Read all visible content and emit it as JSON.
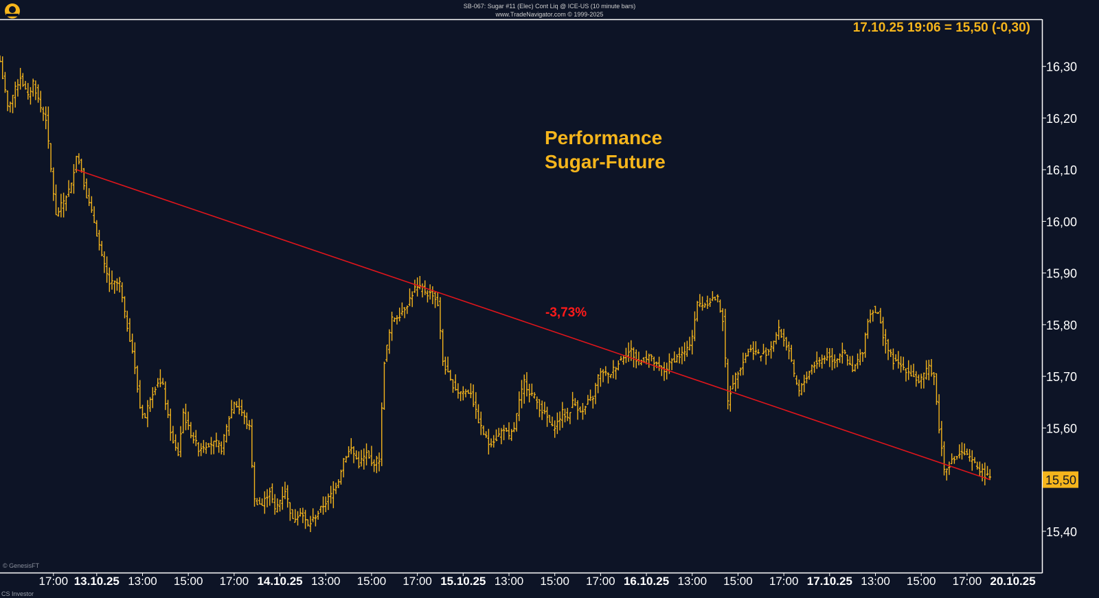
{
  "header": {
    "line1": "SB-067:  Sugar #11 (Elec) Cont Liq @ ICE-US  (10 minute bars)",
    "line2": "www.TradeNavigator.com © 1999-2025",
    "logo_icon": "genesis-logo-icon"
  },
  "readout": "17.10.25 19:06 = 15,50 (-0,30)",
  "watermark": "© GenesisFT",
  "footer_text": "CS Investor",
  "colors": {
    "background": "#0d1426",
    "bars": "#f5b51c",
    "trendline": "#e0151b",
    "title": "#f5b51c",
    "percent": "#ff1a1a",
    "axis_text": "#ffffff",
    "price_tag_bg": "#f5b51c"
  },
  "chart_data": {
    "type": "ohlc-bar",
    "title": "Performance Sugar-Future",
    "title_lines": [
      "Performance",
      "Sugar-Future"
    ],
    "annotation": "-3,73%",
    "current_price_label": "15,50",
    "ylim": [
      15.32,
      16.39
    ],
    "y_ticks": [
      {
        "value": 16.3,
        "label": "16,30"
      },
      {
        "value": 16.2,
        "label": "16,20"
      },
      {
        "value": 16.1,
        "label": "16,10"
      },
      {
        "value": 16.0,
        "label": "16,00"
      },
      {
        "value": 15.9,
        "label": "15,90"
      },
      {
        "value": 15.8,
        "label": "15,80"
      },
      {
        "value": 15.7,
        "label": "15,70"
      },
      {
        "value": 15.6,
        "label": "15,60"
      },
      {
        "value": 15.5,
        "label": "15,50"
      },
      {
        "value": 15.4,
        "label": "15,40"
      }
    ],
    "x_labels": [
      {
        "index": 21,
        "label": "17:00",
        "bold": false
      },
      {
        "index": 38,
        "label": "13.10.25",
        "bold": true
      },
      {
        "index": 56,
        "label": "13:00",
        "bold": false
      },
      {
        "index": 74,
        "label": "15:00",
        "bold": false
      },
      {
        "index": 92,
        "label": "17:00",
        "bold": false
      },
      {
        "index": 110,
        "label": "14.10.25",
        "bold": true
      },
      {
        "index": 128,
        "label": "13:00",
        "bold": false
      },
      {
        "index": 146,
        "label": "15:00",
        "bold": false
      },
      {
        "index": 164,
        "label": "17:00",
        "bold": false
      },
      {
        "index": 182,
        "label": "15.10.25",
        "bold": true
      },
      {
        "index": 200,
        "label": "13:00",
        "bold": false
      },
      {
        "index": 218,
        "label": "15:00",
        "bold": false
      },
      {
        "index": 236,
        "label": "17:00",
        "bold": false
      },
      {
        "index": 254,
        "label": "16.10.25",
        "bold": true
      },
      {
        "index": 272,
        "label": "13:00",
        "bold": false
      },
      {
        "index": 290,
        "label": "15:00",
        "bold": false
      },
      {
        "index": 308,
        "label": "17:00",
        "bold": false
      },
      {
        "index": 326,
        "label": "17.10.25",
        "bold": true
      },
      {
        "index": 344,
        "label": "13:00",
        "bold": false
      },
      {
        "index": 362,
        "label": "15:00",
        "bold": false
      },
      {
        "index": 380,
        "label": "17:00",
        "bold": false
      },
      {
        "index": 398,
        "label": "20.10.25",
        "bold": true
      }
    ],
    "trendline": {
      "start": {
        "index": 30,
        "value": 16.1
      },
      "end": {
        "index": 389,
        "value": 15.5
      }
    },
    "anchors": [
      [
        0,
        16.31
      ],
      [
        3,
        16.22
      ],
      [
        8,
        16.28
      ],
      [
        11,
        16.24
      ],
      [
        13,
        16.27
      ],
      [
        16,
        16.22
      ],
      [
        18,
        16.2
      ],
      [
        20,
        16.1
      ],
      [
        22,
        16.01
      ],
      [
        25,
        16.04
      ],
      [
        28,
        16.07
      ],
      [
        30,
        16.13
      ],
      [
        32,
        16.1
      ],
      [
        34,
        16.05
      ],
      [
        37,
        16.0
      ],
      [
        40,
        15.93
      ],
      [
        43,
        15.88
      ],
      [
        47,
        15.88
      ],
      [
        49,
        15.82
      ],
      [
        52,
        15.75
      ],
      [
        55,
        15.64
      ],
      [
        57,
        15.62
      ],
      [
        59,
        15.66
      ],
      [
        62,
        15.69
      ],
      [
        64,
        15.68
      ],
      [
        66,
        15.62
      ],
      [
        68,
        15.57
      ],
      [
        70,
        15.55
      ],
      [
        72,
        15.63
      ],
      [
        74,
        15.6
      ],
      [
        76,
        15.58
      ],
      [
        78,
        15.56
      ],
      [
        82,
        15.57
      ],
      [
        85,
        15.57
      ],
      [
        87,
        15.56
      ],
      [
        90,
        15.62
      ],
      [
        92,
        15.65
      ],
      [
        95,
        15.63
      ],
      [
        98,
        15.6
      ],
      [
        100,
        15.46
      ],
      [
        103,
        15.45
      ],
      [
        106,
        15.48
      ],
      [
        108,
        15.44
      ],
      [
        110,
        15.46
      ],
      [
        112,
        15.48
      ],
      [
        115,
        15.42
      ],
      [
        118,
        15.44
      ],
      [
        121,
        15.41
      ],
      [
        124,
        15.43
      ],
      [
        127,
        15.45
      ],
      [
        130,
        15.47
      ],
      [
        133,
        15.5
      ],
      [
        135,
        15.54
      ],
      [
        138,
        15.56
      ],
      [
        141,
        15.53
      ],
      [
        144,
        15.55
      ],
      [
        146,
        15.53
      ],
      [
        149,
        15.54
      ],
      [
        151,
        15.73
      ],
      [
        154,
        15.81
      ],
      [
        157,
        15.82
      ],
      [
        160,
        15.84
      ],
      [
        163,
        15.87
      ],
      [
        166,
        15.87
      ],
      [
        168,
        15.86
      ],
      [
        170,
        15.86
      ],
      [
        172,
        15.84
      ],
      [
        174,
        15.73
      ],
      [
        177,
        15.69
      ],
      [
        180,
        15.67
      ],
      [
        182,
        15.67
      ],
      [
        185,
        15.67
      ],
      [
        187,
        15.63
      ],
      [
        189,
        15.6
      ],
      [
        192,
        15.57
      ],
      [
        195,
        15.58
      ],
      [
        198,
        15.6
      ],
      [
        200,
        15.58
      ],
      [
        202,
        15.6
      ],
      [
        204,
        15.65
      ],
      [
        206,
        15.69
      ],
      [
        208,
        15.67
      ],
      [
        210,
        15.66
      ],
      [
        212,
        15.64
      ],
      [
        215,
        15.62
      ],
      [
        217,
        15.6
      ],
      [
        219,
        15.61
      ],
      [
        221,
        15.63
      ],
      [
        223,
        15.62
      ],
      [
        225,
        15.65
      ],
      [
        227,
        15.64
      ],
      [
        229,
        15.63
      ],
      [
        231,
        15.65
      ],
      [
        233,
        15.66
      ],
      [
        235,
        15.7
      ],
      [
        237,
        15.71
      ],
      [
        239,
        15.7
      ],
      [
        242,
        15.72
      ],
      [
        245,
        15.74
      ],
      [
        248,
        15.75
      ],
      [
        250,
        15.73
      ],
      [
        252,
        15.73
      ],
      [
        255,
        15.74
      ],
      [
        258,
        15.72
      ],
      [
        261,
        15.71
      ],
      [
        264,
        15.73
      ],
      [
        267,
        15.74
      ],
      [
        270,
        15.75
      ],
      [
        272,
        15.78
      ],
      [
        274,
        15.84
      ],
      [
        277,
        15.84
      ],
      [
        280,
        15.85
      ],
      [
        282,
        15.85
      ],
      [
        284,
        15.81
      ],
      [
        286,
        15.65
      ],
      [
        288,
        15.69
      ],
      [
        291,
        15.72
      ],
      [
        294,
        15.75
      ],
      [
        296,
        15.75
      ],
      [
        299,
        15.74
      ],
      [
        302,
        15.75
      ],
      [
        304,
        15.77
      ],
      [
        306,
        15.79
      ],
      [
        308,
        15.77
      ],
      [
        310,
        15.75
      ],
      [
        312,
        15.7
      ],
      [
        314,
        15.67
      ],
      [
        317,
        15.7
      ],
      [
        319,
        15.72
      ],
      [
        322,
        15.73
      ],
      [
        325,
        15.74
      ],
      [
        328,
        15.73
      ],
      [
        331,
        15.75
      ],
      [
        333,
        15.73
      ],
      [
        335,
        15.71
      ],
      [
        337,
        15.73
      ],
      [
        339,
        15.75
      ],
      [
        341,
        15.81
      ],
      [
        343,
        15.83
      ],
      [
        345,
        15.82
      ],
      [
        347,
        15.78
      ],
      [
        349,
        15.75
      ],
      [
        351,
        15.73
      ],
      [
        354,
        15.72
      ],
      [
        357,
        15.71
      ],
      [
        359,
        15.7
      ],
      [
        361,
        15.69
      ],
      [
        363,
        15.7
      ],
      [
        365,
        15.72
      ],
      [
        367,
        15.7
      ],
      [
        369,
        15.6
      ],
      [
        371,
        15.52
      ],
      [
        373,
        15.53
      ],
      [
        375,
        15.54
      ],
      [
        377,
        15.55
      ],
      [
        379,
        15.55
      ],
      [
        381,
        15.54
      ],
      [
        383,
        15.53
      ],
      [
        385,
        15.52
      ],
      [
        387,
        15.51
      ],
      [
        389,
        15.5
      ]
    ]
  }
}
